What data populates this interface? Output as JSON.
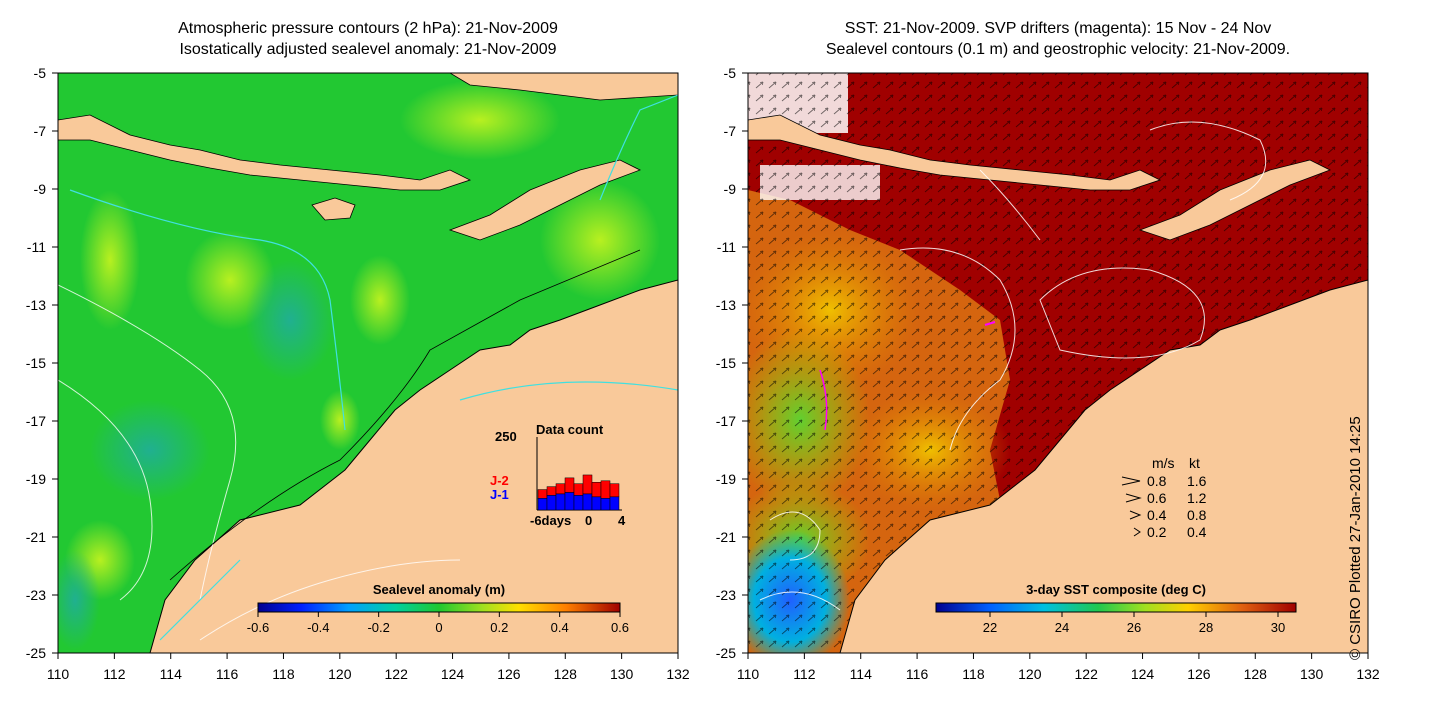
{
  "left_panel": {
    "title_line1": "Atmospheric pressure contours (2 hPa): 21-Nov-2009",
    "title_line2": "Isostatically adjusted sealevel anomaly: 21-Nov-2009",
    "colorbar": {
      "label": "Sealevel anomaly (m)",
      "ticks": [
        "-0.6",
        "-0.4",
        "-0.2",
        "0",
        "0.2",
        "0.4",
        "0.6"
      ],
      "range": [
        -0.6,
        0.6
      ]
    },
    "inset": {
      "title": "Data count",
      "ymax_label": "250",
      "series": [
        {
          "name": "J-2",
          "color": "#ff0000"
        },
        {
          "name": "J-1",
          "color": "#0000ff"
        }
      ],
      "xlabel_days": "-6days",
      "xticks": [
        "0",
        "4"
      ],
      "bars_j1": [
        40,
        50,
        55,
        60,
        50,
        55,
        45,
        40,
        45
      ],
      "bars_j2_total": [
        70,
        80,
        90,
        110,
        90,
        120,
        95,
        100,
        90
      ]
    }
  },
  "right_panel": {
    "title_line1": "SST: 21-Nov-2009. SVP drifters (magenta): 15 Nov - 24 Nov",
    "title_line2": "Sealevel contours (0.1 m) and geostrophic velocity: 21-Nov-2009.",
    "colorbar": {
      "label": "3-day SST composite (deg C)",
      "ticks": [
        "22",
        "24",
        "26",
        "28",
        "30"
      ],
      "range": [
        20.5,
        30.5
      ]
    },
    "velocity_legend": {
      "header_ms": "m/s",
      "header_kt": "kt",
      "rows": [
        {
          "ms": "0.8",
          "kt": "1.6"
        },
        {
          "ms": "0.6",
          "kt": "1.2"
        },
        {
          "ms": "0.4",
          "kt": "0.8"
        },
        {
          "ms": "0.2",
          "kt": "0.4"
        }
      ]
    }
  },
  "axes": {
    "x_ticks": [
      "110",
      "112",
      "114",
      "116",
      "118",
      "120",
      "122",
      "124",
      "126",
      "128",
      "130",
      "132"
    ],
    "y_ticks": [
      "-5",
      "-7",
      "-9",
      "-11",
      "-13",
      "-15",
      "-17",
      "-19",
      "-21",
      "-23",
      "-25"
    ],
    "lon_range": [
      110,
      132
    ],
    "lat_range": [
      -25,
      -5
    ]
  },
  "credit": "© CSIRO Plotted 27-Jan-2010 14:25",
  "colors": {
    "land": "#f9c99a",
    "sea_green": "#22c832",
    "sst_hot": "#a00000",
    "sst_orange": "#d86a10",
    "sst_yellow": "#f0c800",
    "contour_cyan": "#40e0e0"
  }
}
